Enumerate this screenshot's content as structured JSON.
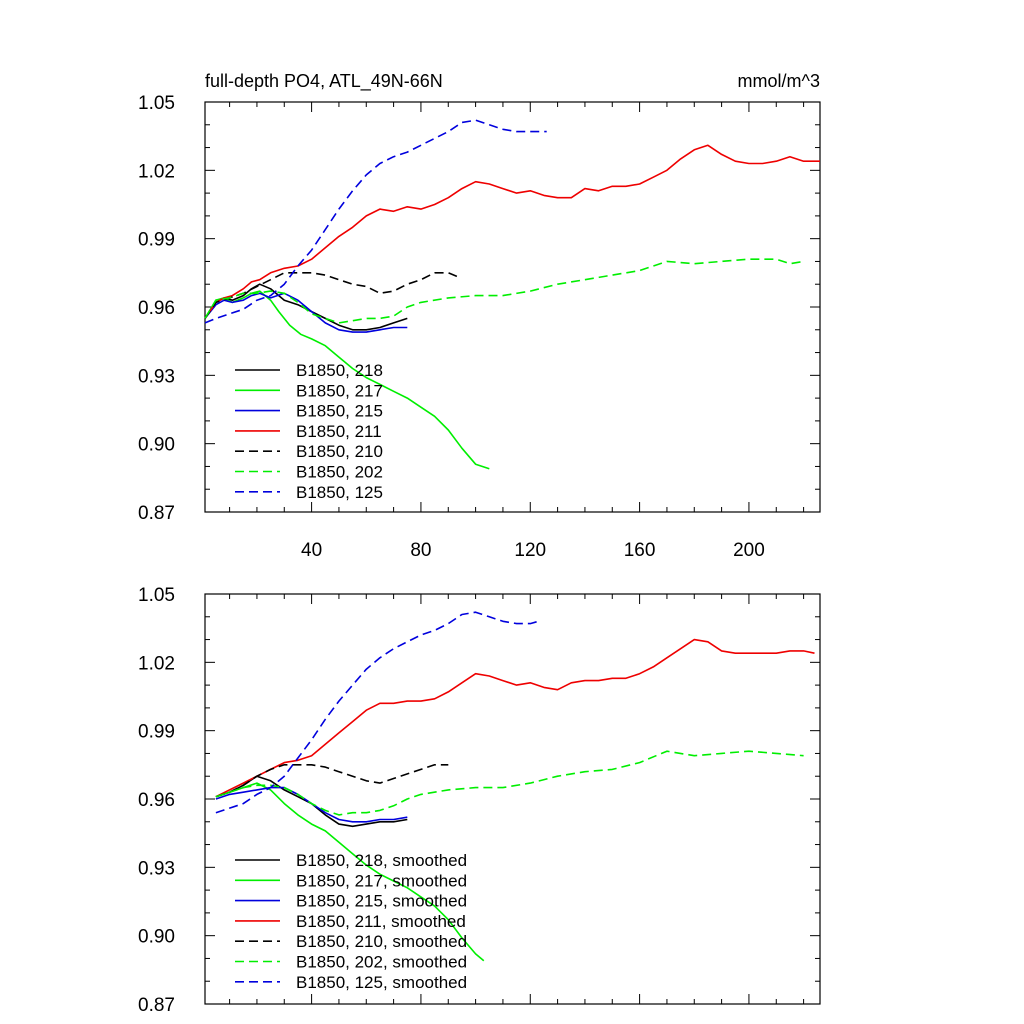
{
  "chart_data": [
    {
      "type": "line",
      "title": "full-depth PO4, ATL_49N-66N",
      "unit": "mmol/m^3",
      "xlim": [
        1,
        226
      ],
      "ylim": [
        0.87,
        1.05
      ],
      "xticks": [
        40,
        80,
        120,
        160,
        200
      ],
      "yticks": [
        0.87,
        0.9,
        0.93,
        0.96,
        0.99,
        1.02,
        1.05
      ],
      "ytick_labels": [
        "0.87",
        "0.90",
        "0.93",
        "0.96",
        "0.99",
        "1.02",
        "1.05"
      ],
      "xtick_labels": [
        "40",
        "80",
        "120",
        "160",
        "200"
      ],
      "legend_position": "lower-left",
      "series": [
        {
          "name": "B1850, 218",
          "color": "#000000",
          "dash": "solid",
          "x": [
            1,
            5,
            8,
            11,
            15,
            18,
            21,
            25,
            30,
            35,
            40,
            45,
            50,
            55,
            60,
            65,
            70,
            75
          ],
          "y": [
            0.955,
            0.962,
            0.964,
            0.963,
            0.965,
            0.968,
            0.97,
            0.968,
            0.963,
            0.961,
            0.958,
            0.955,
            0.952,
            0.95,
            0.95,
            0.951,
            0.953,
            0.955
          ]
        },
        {
          "name": "B1850, 217",
          "color": "#00ee00",
          "dash": "solid",
          "x": [
            1,
            5,
            8,
            11,
            15,
            18,
            21,
            25,
            28,
            32,
            36,
            40,
            45,
            50,
            55,
            60,
            65,
            70,
            75,
            80,
            85,
            90,
            95,
            100,
            105
          ],
          "y": [
            0.955,
            0.963,
            0.964,
            0.962,
            0.964,
            0.966,
            0.967,
            0.963,
            0.958,
            0.952,
            0.948,
            0.946,
            0.943,
            0.938,
            0.933,
            0.929,
            0.926,
            0.923,
            0.92,
            0.916,
            0.912,
            0.906,
            0.898,
            0.891,
            0.889
          ]
        },
        {
          "name": "B1850, 215",
          "color": "#0000dd",
          "dash": "solid",
          "x": [
            1,
            5,
            8,
            11,
            15,
            18,
            21,
            25,
            30,
            35,
            40,
            45,
            50,
            55,
            60,
            65,
            70,
            75
          ],
          "y": [
            0.955,
            0.961,
            0.963,
            0.962,
            0.963,
            0.965,
            0.966,
            0.964,
            0.966,
            0.963,
            0.958,
            0.953,
            0.95,
            0.949,
            0.949,
            0.95,
            0.951,
            0.951
          ]
        },
        {
          "name": "B1850, 211",
          "color": "#ee0000",
          "dash": "solid",
          "x": [
            1,
            5,
            8,
            11,
            15,
            18,
            21,
            25,
            30,
            35,
            40,
            45,
            50,
            55,
            60,
            65,
            70,
            75,
            80,
            85,
            90,
            95,
            100,
            105,
            110,
            115,
            120,
            125,
            130,
            135,
            140,
            145,
            150,
            155,
            160,
            165,
            170,
            175,
            180,
            185,
            190,
            195,
            200,
            205,
            210,
            215,
            220,
            226
          ],
          "y": [
            0.955,
            0.962,
            0.964,
            0.965,
            0.968,
            0.971,
            0.972,
            0.975,
            0.977,
            0.978,
            0.981,
            0.986,
            0.991,
            0.995,
            1.0,
            1.003,
            1.002,
            1.004,
            1.003,
            1.005,
            1.008,
            1.012,
            1.015,
            1.014,
            1.012,
            1.01,
            1.011,
            1.009,
            1.008,
            1.008,
            1.012,
            1.011,
            1.013,
            1.013,
            1.014,
            1.017,
            1.02,
            1.025,
            1.029,
            1.031,
            1.027,
            1.024,
            1.023,
            1.023,
            1.024,
            1.026,
            1.024,
            1.024
          ]
        },
        {
          "name": "B1850, 210",
          "color": "#000000",
          "dash": "dashed",
          "x": [
            1,
            5,
            10,
            15,
            20,
            25,
            30,
            35,
            40,
            45,
            50,
            55,
            60,
            65,
            70,
            75,
            80,
            85,
            90,
            94
          ],
          "y": [
            0.955,
            0.962,
            0.964,
            0.966,
            0.969,
            0.972,
            0.975,
            0.975,
            0.975,
            0.974,
            0.972,
            0.97,
            0.969,
            0.966,
            0.967,
            0.97,
            0.972,
            0.975,
            0.975,
            0.973
          ]
        },
        {
          "name": "B1850, 202",
          "color": "#00ee00",
          "dash": "dashed",
          "x": [
            1,
            5,
            10,
            15,
            20,
            25,
            30,
            35,
            40,
            45,
            50,
            55,
            60,
            65,
            70,
            75,
            80,
            90,
            100,
            110,
            120,
            130,
            140,
            150,
            160,
            170,
            180,
            190,
            200,
            210,
            215,
            220
          ],
          "y": [
            0.955,
            0.963,
            0.964,
            0.966,
            0.966,
            0.967,
            0.966,
            0.962,
            0.957,
            0.955,
            0.953,
            0.954,
            0.955,
            0.955,
            0.956,
            0.96,
            0.962,
            0.964,
            0.965,
            0.965,
            0.967,
            0.97,
            0.972,
            0.974,
            0.976,
            0.98,
            0.979,
            0.98,
            0.981,
            0.981,
            0.979,
            0.98
          ]
        },
        {
          "name": "B1850, 125",
          "color": "#0000dd",
          "dash": "dashed",
          "x": [
            1,
            5,
            10,
            15,
            20,
            25,
            30,
            35,
            40,
            45,
            50,
            55,
            60,
            65,
            70,
            75,
            80,
            85,
            90,
            95,
            100,
            105,
            110,
            115,
            120,
            126
          ],
          "y": [
            0.953,
            0.955,
            0.957,
            0.959,
            0.963,
            0.965,
            0.97,
            0.978,
            0.985,
            0.994,
            1.003,
            1.011,
            1.018,
            1.023,
            1.026,
            1.028,
            1.031,
            1.034,
            1.037,
            1.041,
            1.042,
            1.04,
            1.038,
            1.037,
            1.037,
            1.037
          ]
        }
      ]
    },
    {
      "type": "line",
      "xlim": [
        1,
        226
      ],
      "ylim": [
        0.87,
        1.05
      ],
      "xticks": [
        40,
        80,
        120,
        160,
        200
      ],
      "yticks": [
        0.87,
        0.9,
        0.93,
        0.96,
        0.99,
        1.02,
        1.05
      ],
      "ytick_labels": [
        "0.87",
        "0.90",
        "0.93",
        "0.96",
        "0.99",
        "1.02",
        "1.05"
      ],
      "legend_position": "lower-left",
      "series": [
        {
          "name": "B1850, 218, smoothed",
          "color": "#000000",
          "dash": "solid",
          "x": [
            5,
            10,
            15,
            20,
            25,
            30,
            35,
            40,
            45,
            50,
            55,
            60,
            65,
            70,
            75
          ],
          "y": [
            0.961,
            0.963,
            0.966,
            0.97,
            0.968,
            0.964,
            0.961,
            0.958,
            0.953,
            0.949,
            0.948,
            0.949,
            0.95,
            0.95,
            0.951
          ]
        },
        {
          "name": "B1850, 217, smoothed",
          "color": "#00ee00",
          "dash": "solid",
          "x": [
            5,
            10,
            15,
            20,
            25,
            30,
            35,
            40,
            45,
            50,
            55,
            60,
            65,
            70,
            75,
            80,
            85,
            90,
            95,
            100,
            103
          ],
          "y": [
            0.961,
            0.963,
            0.965,
            0.967,
            0.964,
            0.958,
            0.953,
            0.949,
            0.946,
            0.941,
            0.936,
            0.931,
            0.927,
            0.924,
            0.921,
            0.917,
            0.913,
            0.907,
            0.899,
            0.892,
            0.889
          ]
        },
        {
          "name": "B1850, 215, smoothed",
          "color": "#0000dd",
          "dash": "solid",
          "x": [
            5,
            10,
            15,
            20,
            25,
            30,
            35,
            40,
            45,
            50,
            55,
            60,
            65,
            70,
            75
          ],
          "y": [
            0.96,
            0.962,
            0.963,
            0.964,
            0.965,
            0.965,
            0.962,
            0.958,
            0.954,
            0.951,
            0.95,
            0.95,
            0.951,
            0.951,
            0.952
          ]
        },
        {
          "name": "B1850, 211, smoothed",
          "color": "#ee0000",
          "dash": "solid",
          "x": [
            5,
            10,
            15,
            20,
            25,
            30,
            35,
            40,
            45,
            50,
            55,
            60,
            65,
            70,
            75,
            80,
            85,
            90,
            95,
            100,
            105,
            110,
            115,
            120,
            125,
            130,
            135,
            140,
            145,
            150,
            155,
            160,
            165,
            170,
            175,
            180,
            185,
            190,
            195,
            200,
            205,
            210,
            215,
            220,
            224
          ],
          "y": [
            0.961,
            0.964,
            0.967,
            0.97,
            0.973,
            0.976,
            0.977,
            0.979,
            0.984,
            0.989,
            0.994,
            0.999,
            1.002,
            1.002,
            1.003,
            1.003,
            1.004,
            1.007,
            1.011,
            1.015,
            1.014,
            1.012,
            1.01,
            1.011,
            1.009,
            1.008,
            1.011,
            1.012,
            1.012,
            1.013,
            1.013,
            1.015,
            1.018,
            1.022,
            1.026,
            1.03,
            1.029,
            1.025,
            1.024,
            1.024,
            1.024,
            1.024,
            1.025,
            1.025,
            1.024
          ]
        },
        {
          "name": "B1850, 210, smoothed",
          "color": "#000000",
          "dash": "dashed",
          "x": [
            5,
            10,
            15,
            20,
            25,
            30,
            35,
            40,
            45,
            50,
            55,
            60,
            65,
            70,
            75,
            80,
            85,
            90
          ],
          "y": [
            0.961,
            0.963,
            0.966,
            0.97,
            0.973,
            0.975,
            0.975,
            0.975,
            0.974,
            0.972,
            0.97,
            0.968,
            0.967,
            0.969,
            0.971,
            0.973,
            0.975,
            0.975
          ]
        },
        {
          "name": "B1850, 202, smoothed",
          "color": "#00ee00",
          "dash": "dashed",
          "x": [
            5,
            10,
            15,
            20,
            25,
            30,
            35,
            40,
            45,
            50,
            55,
            60,
            65,
            70,
            75,
            80,
            90,
            100,
            110,
            120,
            130,
            140,
            150,
            160,
            170,
            180,
            190,
            200,
            210,
            220
          ],
          "y": [
            0.961,
            0.963,
            0.965,
            0.966,
            0.966,
            0.965,
            0.962,
            0.958,
            0.955,
            0.953,
            0.954,
            0.954,
            0.955,
            0.957,
            0.96,
            0.962,
            0.964,
            0.965,
            0.965,
            0.967,
            0.97,
            0.972,
            0.973,
            0.976,
            0.981,
            0.979,
            0.98,
            0.981,
            0.98,
            0.979
          ]
        },
        {
          "name": "B1850, 125, smoothed",
          "color": "#0000dd",
          "dash": "dashed",
          "x": [
            5,
            10,
            15,
            20,
            25,
            30,
            35,
            40,
            45,
            50,
            55,
            60,
            65,
            70,
            75,
            80,
            85,
            90,
            95,
            100,
            105,
            110,
            115,
            120,
            123
          ],
          "y": [
            0.954,
            0.956,
            0.958,
            0.962,
            0.965,
            0.97,
            0.978,
            0.986,
            0.995,
            1.003,
            1.01,
            1.017,
            1.022,
            1.026,
            1.029,
            1.032,
            1.034,
            1.037,
            1.041,
            1.042,
            1.04,
            1.038,
            1.037,
            1.037,
            1.038
          ]
        }
      ]
    }
  ]
}
